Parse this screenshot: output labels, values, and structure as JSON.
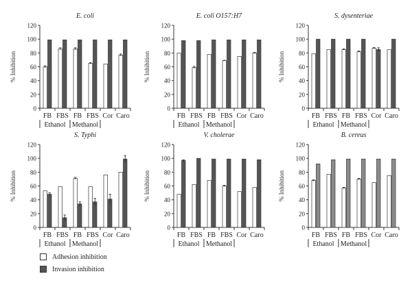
{
  "chart_data": [
    {
      "type": "bar",
      "title": "E. coli",
      "ylabel": "% Inhibition",
      "ylim": [
        0,
        120
      ],
      "yticks": [
        0,
        20,
        40,
        60,
        80,
        100,
        120
      ],
      "categories": [
        "FB",
        "FBS",
        "FB",
        "FBS",
        "Cor",
        "Caro"
      ],
      "groups": [
        {
          "label": "Ethanol",
          "from": 0,
          "to": 1
        },
        {
          "label": "Methanol",
          "from": 2,
          "to": 3
        }
      ],
      "series": [
        {
          "name": "Adhesion inhibition",
          "values": [
            60,
            86,
            86,
            65,
            64,
            77
          ],
          "errors": [
            1.5,
            1.5,
            1.5,
            1,
            0,
            1.5
          ]
        },
        {
          "name": "Invasion inhibition",
          "values": [
            99,
            99,
            99,
            99,
            99,
            99
          ],
          "errors": [
            0,
            0,
            0,
            0,
            0,
            0
          ]
        }
      ]
    },
    {
      "type": "bar",
      "title": "E. coli O157:H7",
      "ylabel": "% Inhibition",
      "ylim": [
        0,
        120
      ],
      "yticks": [
        0,
        20,
        40,
        60,
        80,
        100,
        120
      ],
      "categories": [
        "FB",
        "FBS",
        "FB",
        "FBS",
        "Cor",
        "Caro"
      ],
      "groups": [
        {
          "label": "Ethanol",
          "from": 0,
          "to": 1
        },
        {
          "label": "Methanol",
          "from": 2,
          "to": 3
        }
      ],
      "series": [
        {
          "name": "Adhesion inhibition",
          "values": [
            80,
            59,
            78,
            69,
            75,
            80
          ],
          "errors": [
            0,
            1.5,
            0,
            0.5,
            0,
            1
          ]
        },
        {
          "name": "Invasion inhibition",
          "values": [
            98,
            98,
            99,
            99,
            99,
            99
          ],
          "errors": [
            0,
            0,
            0,
            0,
            0,
            0
          ]
        }
      ]
    },
    {
      "type": "bar",
      "title": "S. dysenteriae",
      "ylabel": "% Inhibition",
      "ylim": [
        0,
        120
      ],
      "yticks": [
        0,
        20,
        40,
        60,
        80,
        100,
        120
      ],
      "categories": [
        "FB",
        "FBS",
        "FB",
        "FBS",
        "Cor",
        "Caro"
      ],
      "groups": [
        {
          "label": "Ethanol",
          "from": 0,
          "to": 1
        },
        {
          "label": "Methanol",
          "from": 2,
          "to": 3
        }
      ],
      "series": [
        {
          "name": "Adhesion inhibition",
          "values": [
            79,
            85,
            85,
            82,
            87,
            85
          ],
          "errors": [
            0,
            0,
            1,
            1,
            1,
            0
          ]
        },
        {
          "name": "Invasion inhibition",
          "values": [
            100,
            100,
            100,
            100,
            85,
            100
          ],
          "errors": [
            0,
            0,
            0,
            0,
            2.5,
            0
          ]
        }
      ]
    },
    {
      "type": "bar",
      "title": "S. Typhi",
      "ylabel": "% Inhibition",
      "ylim": [
        0,
        120
      ],
      "yticks": [
        0,
        20,
        40,
        60,
        80,
        100,
        120
      ],
      "categories": [
        "FB",
        "FBS",
        "FB",
        "FBS",
        "Cor",
        "Caro"
      ],
      "groups": [
        {
          "label": "Ethanol",
          "from": 0,
          "to": 1
        },
        {
          "label": "Methanol",
          "from": 2,
          "to": 3
        }
      ],
      "series": [
        {
          "name": "Adhesion inhibition",
          "values": [
            53,
            59,
            71,
            59,
            76,
            80
          ],
          "errors": [
            0,
            0,
            1.5,
            0,
            0,
            0
          ]
        },
        {
          "name": "Invasion inhibition",
          "values": [
            48,
            14,
            34,
            37,
            41,
            99
          ],
          "errors": [
            2,
            4,
            3,
            5,
            7,
            5
          ]
        }
      ]
    },
    {
      "type": "bar",
      "title": "V. cholerae",
      "ylabel": "% Inhibition",
      "ylim": [
        0,
        120
      ],
      "yticks": [
        0,
        20,
        40,
        60,
        80,
        100,
        120
      ],
      "categories": [
        "FB",
        "FBS",
        "FB",
        "FBS",
        "Cor",
        "Caro"
      ],
      "groups": [
        {
          "label": "Ethanol",
          "from": 0,
          "to": 1
        },
        {
          "label": "Methanol",
          "from": 2,
          "to": 3
        }
      ],
      "series": [
        {
          "name": "Adhesion inhibition",
          "values": [
            48,
            62,
            68,
            60,
            52,
            58
          ],
          "errors": [
            0,
            0,
            0,
            1,
            0,
            0
          ]
        },
        {
          "name": "Invasion inhibition",
          "values": [
            97,
            100,
            99,
            99,
            99,
            98
          ],
          "errors": [
            1,
            0,
            0,
            0,
            0,
            0
          ]
        }
      ]
    },
    {
      "type": "bar",
      "title": "B. cereus",
      "ylabel": "% Inhibition",
      "ylim": [
        0,
        120
      ],
      "yticks": [
        0,
        20,
        40,
        60,
        80,
        100,
        120
      ],
      "categories": [
        "FB",
        "FBS",
        "FB",
        "FBS",
        "Cor",
        "Caro"
      ],
      "groups": [
        {
          "label": "Ethanol",
          "from": 0,
          "to": 1
        },
        {
          "label": "Methanol",
          "from": 2,
          "to": 3
        }
      ],
      "series": [
        {
          "name": "Adhesion inhibition",
          "values": [
            68,
            77,
            57,
            70,
            65,
            75
          ],
          "errors": [
            1,
            0,
            1,
            1,
            0,
            0
          ]
        },
        {
          "name": "Invasion inhibition",
          "values": [
            92,
            98,
            99,
            99,
            99,
            99
          ],
          "errors": [
            0,
            0,
            0,
            0,
            0,
            0
          ]
        }
      ]
    }
  ],
  "legend": {
    "items": [
      {
        "label": "Adhesion inhibition",
        "color": "#ffffff"
      },
      {
        "label": "Invasion inhibition",
        "color": "#555555"
      }
    ]
  },
  "colors": {
    "adhesion": "#ffffff",
    "invasion": "#555555",
    "invasion_alt": "#8c8c8c",
    "axis": "#333333"
  }
}
